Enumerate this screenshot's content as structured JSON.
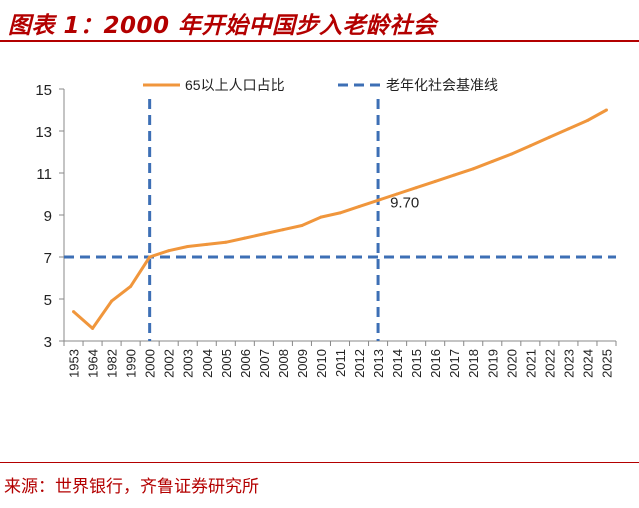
{
  "header": {
    "title": "图表 1：2000 年开始中国步入老龄社会"
  },
  "footer": {
    "source": "来源：世界银行，齐鲁证券研究所"
  },
  "colors": {
    "accent": "#b30000",
    "line": "#f0963c",
    "baseline": "#3d6fb5",
    "axis": "#888888"
  },
  "chart_data": {
    "type": "line",
    "title": "",
    "xlabel": "",
    "ylabel": "",
    "ylim": [
      3,
      15
    ],
    "yticks": [
      3,
      5,
      7,
      9,
      11,
      13,
      15
    ],
    "grid": false,
    "legend_position": "top",
    "categories": [
      "1953",
      "1964",
      "1982",
      "1990",
      "2000",
      "2002",
      "2003",
      "2004",
      "2005",
      "2006",
      "2007",
      "2008",
      "2009",
      "2010",
      "2011",
      "2012",
      "2013",
      "2014",
      "2015",
      "2016",
      "2017",
      "2018",
      "2019",
      "2020",
      "2021",
      "2022",
      "2023",
      "2024",
      "2025"
    ],
    "series": [
      {
        "name": "65以上人口占比",
        "values": [
          4.4,
          3.6,
          4.9,
          5.6,
          7.0,
          7.3,
          7.5,
          7.6,
          7.7,
          7.9,
          8.1,
          8.3,
          8.5,
          8.9,
          9.1,
          9.4,
          9.7,
          10.0,
          10.3,
          10.6,
          10.9,
          11.2,
          11.55,
          11.9,
          12.3,
          12.7,
          13.1,
          13.5,
          14.0
        ],
        "data_labels": [
          {
            "category": "2013",
            "text": "9.70"
          }
        ]
      }
    ],
    "reference_lines": [
      {
        "name": "老年化社会基准线",
        "orientation": "horizontal",
        "value": 7
      },
      {
        "orientation": "vertical",
        "category": "2000"
      },
      {
        "orientation": "vertical",
        "category": "2013"
      }
    ]
  }
}
